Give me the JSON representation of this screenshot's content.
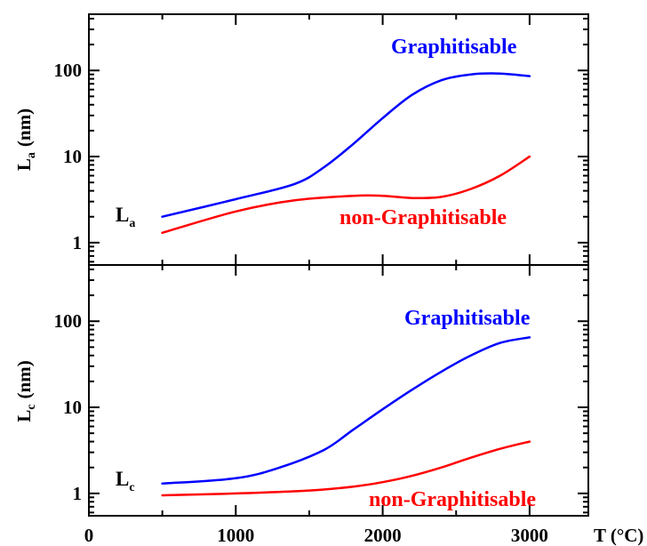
{
  "chart_data": [
    {
      "type": "line",
      "panel": "top",
      "ylabel": "L",
      "ylabel_sub": "a",
      "ylabel_unit": "(nm)",
      "yscale": "log",
      "ylim": [
        0.55,
        450
      ],
      "xlim": [
        0,
        3400
      ],
      "yticks": [
        1,
        10,
        100
      ],
      "ytick_labels": [
        "1",
        "10",
        "100"
      ],
      "inline_label": {
        "main": "L",
        "sub": "a"
      },
      "series": [
        {
          "name": "Graphitisable",
          "color": "#0000ff",
          "x": [
            500,
            1000,
            1400,
            1600,
            1800,
            2000,
            2200,
            2400,
            2600,
            2800,
            3000
          ],
          "y": [
            2.0,
            3.2,
            4.8,
            7.5,
            14,
            28,
            52,
            77,
            90,
            92,
            86
          ]
        },
        {
          "name": "non-Graphitisable",
          "color": "#ff0000",
          "x": [
            500,
            1000,
            1400,
            1800,
            2000,
            2200,
            2400,
            2600,
            2800,
            3000
          ],
          "y": [
            1.3,
            2.3,
            3.1,
            3.5,
            3.5,
            3.3,
            3.4,
            4.2,
            6.0,
            10
          ]
        }
      ]
    },
    {
      "type": "line",
      "panel": "bottom",
      "ylabel": "L",
      "ylabel_sub": "c",
      "ylabel_unit": "(nm)",
      "yscale": "log",
      "ylim": [
        0.55,
        450
      ],
      "xlim": [
        0,
        3400
      ],
      "xlabel": "T (°C)",
      "yticks": [
        1,
        10,
        100
      ],
      "ytick_labels": [
        "1",
        "10",
        "100"
      ],
      "xticks": [
        0,
        1000,
        2000,
        3000
      ],
      "xtick_labels": [
        "0",
        "1000",
        "2000",
        "3000"
      ],
      "inline_label": {
        "main": "L",
        "sub": "c"
      },
      "series": [
        {
          "name": "Graphitisable",
          "color": "#0000ff",
          "x": [
            500,
            1000,
            1300,
            1600,
            1800,
            2000,
            2200,
            2400,
            2600,
            2800,
            3000
          ],
          "y": [
            1.3,
            1.5,
            2.0,
            3.2,
            5.5,
            9.5,
            16,
            26,
            40,
            56,
            65
          ]
        },
        {
          "name": "non-Graphitisable",
          "color": "#ff0000",
          "x": [
            500,
            1000,
            1500,
            1800,
            2000,
            2200,
            2400,
            2600,
            2800,
            3000
          ],
          "y": [
            0.95,
            1.0,
            1.08,
            1.2,
            1.35,
            1.6,
            2.0,
            2.6,
            3.3,
            4.0
          ]
        }
      ]
    }
  ]
}
